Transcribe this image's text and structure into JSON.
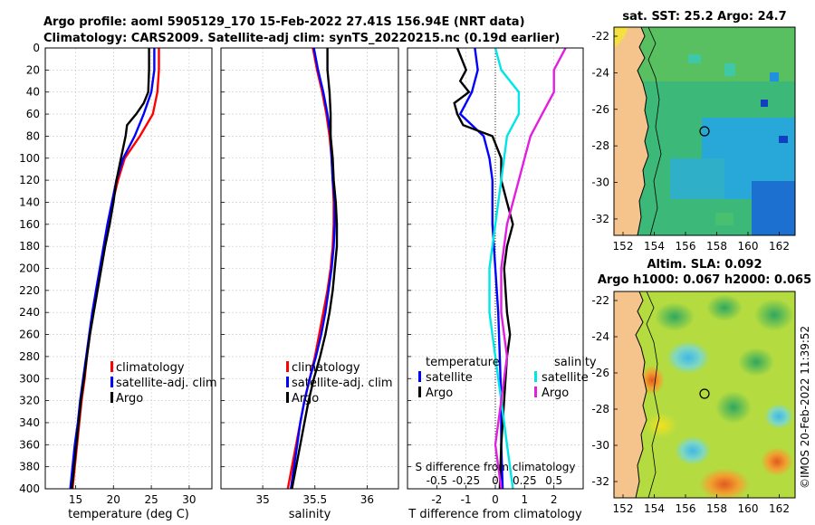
{
  "figure": {
    "title_line1": "Argo profile: aoml 5905129_170 15-Feb-2022 27.41S 156.94E (NRT data)",
    "title_line2": "Climatology: CARS2009. Satellite-adj clim: synTS_20220215.nc (0.19d earlier)",
    "sst_title": "sat. SST: 25.2 Argo: 24.7",
    "sla_title1": "Altim. SLA: 0.092",
    "sla_title2": "Argo h1000: 0.067 h2000: 0.065",
    "timestamp": "©IMOS 20-Feb-2022 11:39:52"
  },
  "colors": {
    "climatology": "#ff0000",
    "satellite": "#0000ff",
    "argo": "#000000",
    "sal_satellite": "#00e5e5",
    "sal_argo": "#e020e0",
    "land": "#f5c48c"
  },
  "chart_data": [
    {
      "name": "temperature",
      "type": "line",
      "xlabel": "temperature (deg C)",
      "ylabel": "",
      "xlim": [
        11,
        33
      ],
      "ylim": [
        400,
        0
      ],
      "xticks": [
        15,
        20,
        25,
        30
      ],
      "yticks": [
        0,
        20,
        40,
        60,
        80,
        100,
        120,
        140,
        160,
        180,
        200,
        220,
        240,
        260,
        280,
        300,
        320,
        340,
        360,
        380,
        400
      ],
      "legend": [
        "climatology",
        "satellite-adj. clim",
        "Argo"
      ],
      "series": [
        {
          "name": "climatology",
          "color": "#ff0000",
          "points": [
            [
              26.0,
              0
            ],
            [
              26.0,
              20
            ],
            [
              25.8,
              40
            ],
            [
              25.2,
              60
            ],
            [
              23.5,
              80
            ],
            [
              21.5,
              100
            ],
            [
              20.6,
              120
            ],
            [
              19.9,
              140
            ],
            [
              19.3,
              160
            ],
            [
              18.8,
              180
            ],
            [
              18.3,
              200
            ],
            [
              17.8,
              220
            ],
            [
              17.3,
              240
            ],
            [
              16.9,
              260
            ],
            [
              16.5,
              280
            ],
            [
              16.2,
              300
            ],
            [
              15.8,
              320
            ],
            [
              15.5,
              340
            ],
            [
              15.2,
              360
            ],
            [
              14.9,
              380
            ],
            [
              14.6,
              400
            ]
          ]
        },
        {
          "name": "satellite-adj. clim",
          "color": "#0000ff",
          "points": [
            [
              25.4,
              0
            ],
            [
              25.4,
              20
            ],
            [
              25.0,
              40
            ],
            [
              24.0,
              60
            ],
            [
              22.8,
              80
            ],
            [
              21.3,
              100
            ],
            [
              20.4,
              120
            ],
            [
              19.8,
              140
            ],
            [
              19.2,
              160
            ],
            [
              18.7,
              180
            ],
            [
              18.2,
              200
            ],
            [
              17.7,
              220
            ],
            [
              17.2,
              240
            ],
            [
              16.8,
              260
            ],
            [
              16.4,
              280
            ],
            [
              16.0,
              300
            ],
            [
              15.6,
              320
            ],
            [
              15.3,
              340
            ],
            [
              14.9,
              360
            ],
            [
              14.6,
              380
            ],
            [
              14.3,
              400
            ]
          ]
        },
        {
          "name": "Argo",
          "color": "#000000",
          "points": [
            [
              24.7,
              0
            ],
            [
              24.7,
              20
            ],
            [
              24.6,
              40
            ],
            [
              24.0,
              50
            ],
            [
              23.0,
              60
            ],
            [
              21.8,
              70
            ],
            [
              21.6,
              80
            ],
            [
              21.0,
              100
            ],
            [
              20.4,
              120
            ],
            [
              20.0,
              140
            ],
            [
              19.5,
              160
            ],
            [
              18.9,
              180
            ],
            [
              18.4,
              200
            ],
            [
              17.9,
              220
            ],
            [
              17.4,
              240
            ],
            [
              16.9,
              260
            ],
            [
              16.5,
              280
            ],
            [
              16.1,
              300
            ],
            [
              15.7,
              320
            ],
            [
              15.4,
              340
            ],
            [
              15.1,
              360
            ],
            [
              14.8,
              380
            ],
            [
              14.5,
              400
            ]
          ]
        }
      ]
    },
    {
      "name": "salinity",
      "type": "line",
      "xlabel": "salinity",
      "ylabel": "",
      "xlim": [
        34.6,
        36.3
      ],
      "ylim": [
        400,
        0
      ],
      "xticks": [
        35,
        35.5,
        36
      ],
      "legend": [
        "climatology",
        "satellite-adj. clim",
        "Argo"
      ],
      "series": [
        {
          "name": "climatology",
          "color": "#ff0000",
          "points": [
            [
              35.48,
              0
            ],
            [
              35.52,
              20
            ],
            [
              35.57,
              40
            ],
            [
              35.61,
              60
            ],
            [
              35.64,
              80
            ],
            [
              35.66,
              100
            ],
            [
              35.67,
              120
            ],
            [
              35.68,
              140
            ],
            [
              35.68,
              160
            ],
            [
              35.67,
              180
            ],
            [
              35.65,
              200
            ],
            [
              35.62,
              220
            ],
            [
              35.58,
              240
            ],
            [
              35.54,
              260
            ],
            [
              35.5,
              280
            ],
            [
              35.45,
              300
            ],
            [
              35.4,
              320
            ],
            [
              35.36,
              340
            ],
            [
              35.32,
              360
            ],
            [
              35.28,
              380
            ],
            [
              35.24,
              400
            ]
          ]
        },
        {
          "name": "satellite-adj. clim",
          "color": "#0000ff",
          "points": [
            [
              35.49,
              0
            ],
            [
              35.53,
              20
            ],
            [
              35.58,
              40
            ],
            [
              35.62,
              60
            ],
            [
              35.65,
              80
            ],
            [
              35.66,
              100
            ],
            [
              35.67,
              120
            ],
            [
              35.69,
              140
            ],
            [
              35.69,
              160
            ],
            [
              35.68,
              180
            ],
            [
              35.66,
              200
            ],
            [
              35.63,
              220
            ],
            [
              35.6,
              240
            ],
            [
              35.56,
              260
            ],
            [
              35.51,
              280
            ],
            [
              35.45,
              300
            ],
            [
              35.4,
              320
            ],
            [
              35.36,
              340
            ],
            [
              35.33,
              360
            ],
            [
              35.3,
              380
            ],
            [
              35.27,
              400
            ]
          ]
        },
        {
          "name": "Argo",
          "color": "#000000",
          "points": [
            [
              35.62,
              0
            ],
            [
              35.62,
              20
            ],
            [
              35.64,
              40
            ],
            [
              35.65,
              60
            ],
            [
              35.65,
              80
            ],
            [
              35.67,
              100
            ],
            [
              35.68,
              120
            ],
            [
              35.7,
              140
            ],
            [
              35.71,
              160
            ],
            [
              35.71,
              180
            ],
            [
              35.69,
              200
            ],
            [
              35.67,
              220
            ],
            [
              35.64,
              240
            ],
            [
              35.6,
              260
            ],
            [
              35.55,
              280
            ],
            [
              35.49,
              300
            ],
            [
              35.44,
              320
            ],
            [
              35.4,
              340
            ],
            [
              35.36,
              360
            ],
            [
              35.32,
              380
            ],
            [
              35.28,
              400
            ]
          ]
        }
      ]
    },
    {
      "name": "difference",
      "type": "line",
      "xlabel": "T difference from climatology",
      "xlabel_top": "S difference from climatology",
      "xlim": [
        -3,
        3
      ],
      "ylim": [
        400,
        0
      ],
      "xticks": [
        -2,
        -1,
        0,
        1,
        2
      ],
      "xticks_labels": [
        "-2",
        "-1",
        "0",
        "1",
        "2"
      ],
      "s_ticks": [
        -0.5,
        -0.25,
        0,
        0.25,
        0.5
      ],
      "s_ticks_labels": [
        "-0.5",
        "-0.25",
        "0",
        "0.25",
        "0.5"
      ],
      "legend_left_title": "temperature",
      "legend_right_title": "salinity",
      "legend": [
        "satellite",
        "Argo",
        "satellite",
        "Argo"
      ],
      "series": [
        {
          "name": "T satellite",
          "color": "#0000ff",
          "points": [
            [
              -0.7,
              0
            ],
            [
              -0.6,
              20
            ],
            [
              -0.8,
              40
            ],
            [
              -1.2,
              60
            ],
            [
              -0.4,
              80
            ],
            [
              -0.2,
              100
            ],
            [
              -0.1,
              120
            ],
            [
              -0.1,
              160
            ],
            [
              0.0,
              200
            ],
            [
              0.1,
              240
            ],
            [
              0.15,
              280
            ],
            [
              0.2,
              320
            ],
            [
              0.2,
              360
            ],
            [
              0.25,
              400
            ]
          ]
        },
        {
          "name": "T Argo",
          "color": "#000000",
          "points": [
            [
              -1.3,
              0
            ],
            [
              -1.0,
              20
            ],
            [
              -1.2,
              30
            ],
            [
              -0.9,
              40
            ],
            [
              -1.4,
              50
            ],
            [
              -1.3,
              60
            ],
            [
              -1.1,
              70
            ],
            [
              -0.1,
              80
            ],
            [
              0.2,
              100
            ],
            [
              0.2,
              120
            ],
            [
              0.4,
              140
            ],
            [
              0.6,
              160
            ],
            [
              0.4,
              180
            ],
            [
              0.3,
              200
            ],
            [
              0.4,
              240
            ],
            [
              0.5,
              260
            ],
            [
              0.4,
              280
            ],
            [
              0.3,
              320
            ],
            [
              0.2,
              360
            ],
            [
              0.15,
              400
            ]
          ]
        },
        {
          "name": "S satellite",
          "color": "#00e5e5",
          "points": [
            [
              0.0,
              0
            ],
            [
              0.05,
              20
            ],
            [
              0.2,
              40
            ],
            [
              0.2,
              60
            ],
            [
              0.1,
              80
            ],
            [
              0.05,
              120
            ],
            [
              0.0,
              160
            ],
            [
              -0.05,
              200
            ],
            [
              -0.05,
              240
            ],
            [
              0.0,
              280
            ],
            [
              0.05,
              320
            ],
            [
              0.1,
              360
            ],
            [
              0.15,
              400
            ]
          ]
        },
        {
          "name": "S Argo",
          "color": "#e020e0",
          "points": [
            [
              0.6,
              0
            ],
            [
              0.5,
              20
            ],
            [
              0.5,
              40
            ],
            [
              0.4,
              60
            ],
            [
              0.3,
              80
            ],
            [
              0.2,
              120
            ],
            [
              0.1,
              160
            ],
            [
              0.05,
              200
            ],
            [
              0.05,
              240
            ],
            [
              0.1,
              280
            ],
            [
              0.05,
              320
            ],
            [
              0.0,
              360
            ],
            [
              0.05,
              400
            ]
          ]
        }
      ]
    }
  ],
  "maps": {
    "lon_ticks": [
      "152",
      "154",
      "156",
      "158",
      "160",
      "162"
    ],
    "lat_ticks": [
      "-22",
      "-24",
      "-26",
      "-28",
      "-30",
      "-32"
    ]
  }
}
